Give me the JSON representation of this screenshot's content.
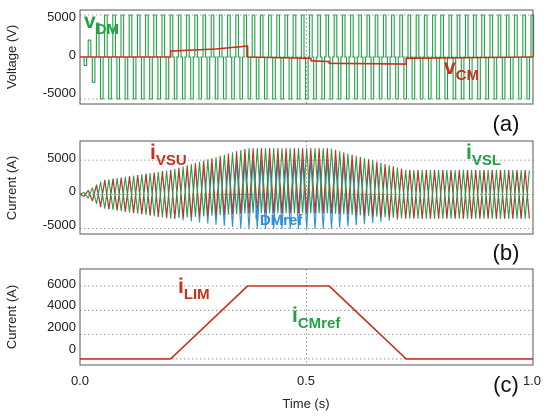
{
  "figure": {
    "xlabel": "Time (s)",
    "x_ticks": [
      "0.0",
      "0.5",
      "1.0"
    ]
  },
  "colors": {
    "green": "#22A045",
    "red": "#C8301E",
    "blue": "#2E8FD8",
    "frame": "#555555",
    "grid": "#808080"
  },
  "chart_data": [
    {
      "type": "line",
      "panel": "(a)",
      "ylabel": "Voltage (V)",
      "y_ticks": [
        "5000",
        "0",
        "-5000"
      ],
      "xlim": [
        0,
        1
      ],
      "ylim": [
        -5600,
        5600
      ],
      "grid": true,
      "series": [
        {
          "label_main": "v",
          "label_sub": "DM",
          "color": "green",
          "kind": "pwm",
          "amplitude": 5000,
          "start_time": 0.0,
          "onset_end": 0.045,
          "switching_period": 0.0181
        },
        {
          "label_main": "v",
          "label_sub": "CM",
          "color": "red",
          "kind": "step",
          "x": [
            0.0,
            0.2,
            0.2,
            0.3,
            0.37,
            0.37,
            0.51,
            0.51,
            0.55,
            0.55,
            0.72,
            0.72,
            1.0
          ],
          "y": [
            0,
            0,
            700,
            950,
            1300,
            0,
            -150,
            -450,
            -550,
            -750,
            -850,
            -150,
            0
          ]
        }
      ]
    },
    {
      "type": "line",
      "panel": "(b)",
      "ylabel": "Current (A)",
      "y_ticks": [
        "5000",
        "0",
        "-5000"
      ],
      "xlim": [
        0,
        1
      ],
      "ylim": [
        -5800,
        7800
      ],
      "grid": true,
      "series": [
        {
          "label_main": "i",
          "label_sub": "DMref",
          "color": "blue",
          "kind": "envelope_wave",
          "envelope_x": [
            0.0,
            0.02,
            0.05,
            0.2,
            0.37,
            0.55,
            0.72,
            1.0
          ],
          "envelope": [
            0,
            600,
            2000,
            3500,
            5000,
            5000,
            3500,
            3500
          ],
          "offset_x": [
            0.0,
            1.0
          ],
          "offset": [
            0,
            0
          ],
          "period": 0.0182
        },
        {
          "label_main": "i",
          "label_sub": "VSU",
          "color": "red",
          "kind": "envelope_wave",
          "envelope_x": [
            0.0,
            0.02,
            0.05,
            0.2,
            0.37,
            0.55,
            0.72,
            1.0
          ],
          "envelope": [
            0,
            600,
            2000,
            3500,
            4700,
            4700,
            3500,
            3500
          ],
          "offset_x": [
            0.0,
            0.2,
            0.37,
            0.55,
            0.72,
            1.0
          ],
          "offset": [
            0,
            0,
            2000,
            2000,
            0,
            0
          ],
          "period": 0.0182
        },
        {
          "label_main": "i",
          "label_sub": "VSL",
          "color": "green",
          "kind": "envelope_wave",
          "envelope_x": [
            0.0,
            0.02,
            0.05,
            0.2,
            0.37,
            0.55,
            0.72,
            1.0
          ],
          "envelope": [
            0,
            600,
            2000,
            3500,
            4700,
            4700,
            3500,
            3500
          ],
          "offset_x": [
            0.0,
            0.2,
            0.37,
            0.55,
            0.72,
            1.0
          ],
          "offset": [
            0,
            0,
            2000,
            2000,
            0,
            0
          ],
          "period": 0.0182,
          "phase_shift": 0.5
        }
      ]
    },
    {
      "type": "line",
      "panel": "(c)",
      "ylabel": "Current (A)",
      "y_ticks": [
        "6000",
        "4000",
        "2000",
        "0"
      ],
      "xlim": [
        0,
        1
      ],
      "ylim": [
        -500,
        7400
      ],
      "grid": true,
      "series": [
        {
          "label_main": "i",
          "label_sub": "LIM",
          "color": "red",
          "kind": "polyline",
          "x": [
            0.0,
            0.2,
            0.37,
            0.55,
            0.72,
            1.0
          ],
          "y": [
            0,
            0,
            6000,
            6000,
            0,
            0
          ]
        },
        {
          "label_main": "i",
          "label_sub": "CMref",
          "color": "green",
          "kind": "label_only"
        }
      ]
    }
  ]
}
